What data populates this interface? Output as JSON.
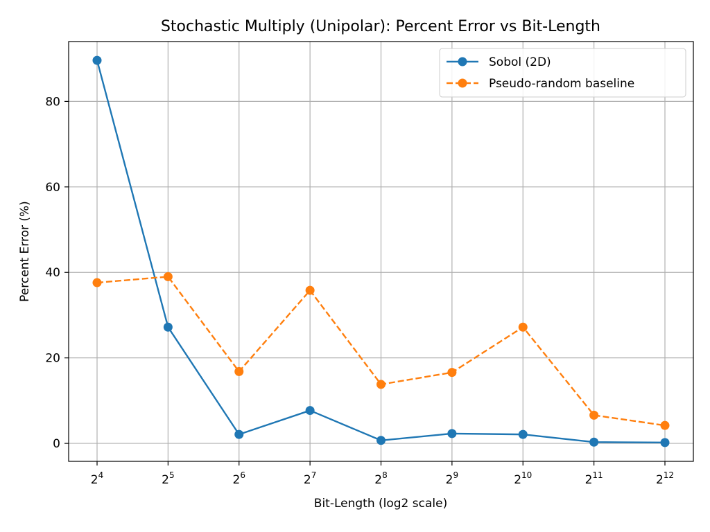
{
  "chart_data": {
    "type": "line",
    "title": "Stochastic Multiply (Unipolar): Percent Error vs Bit-Length",
    "xlabel": "Bit-Length (log2 scale)",
    "ylabel": "Percent Error (%)",
    "x_scale": "log2",
    "x": [
      16,
      32,
      64,
      128,
      256,
      512,
      1024,
      2048,
      4096
    ],
    "x_tick_labels": [
      {
        "base": "2",
        "exp": "4"
      },
      {
        "base": "2",
        "exp": "5"
      },
      {
        "base": "2",
        "exp": "6"
      },
      {
        "base": "2",
        "exp": "7"
      },
      {
        "base": "2",
        "exp": "8"
      },
      {
        "base": "2",
        "exp": "9"
      },
      {
        "base": "2",
        "exp": "10"
      },
      {
        "base": "2",
        "exp": "11"
      },
      {
        "base": "2",
        "exp": "12"
      }
    ],
    "y_ticks": [
      0,
      20,
      40,
      60,
      80
    ],
    "ylim": [
      -4.2,
      94
    ],
    "grid": true,
    "legend_position": "top-right",
    "series": [
      {
        "name": "Sobol (2D)",
        "color": "#1f77b4",
        "line_style": "solid",
        "marker": "circle",
        "values": [
          89.6,
          27.2,
          2.1,
          7.7,
          0.7,
          2.3,
          2.1,
          0.3,
          0.2
        ]
      },
      {
        "name": "Pseudo-random baseline",
        "color": "#ff7f0e",
        "line_style": "dashed",
        "marker": "circle",
        "values": [
          37.6,
          39.0,
          16.8,
          35.8,
          13.8,
          16.6,
          27.2,
          6.6,
          4.2
        ]
      }
    ]
  }
}
